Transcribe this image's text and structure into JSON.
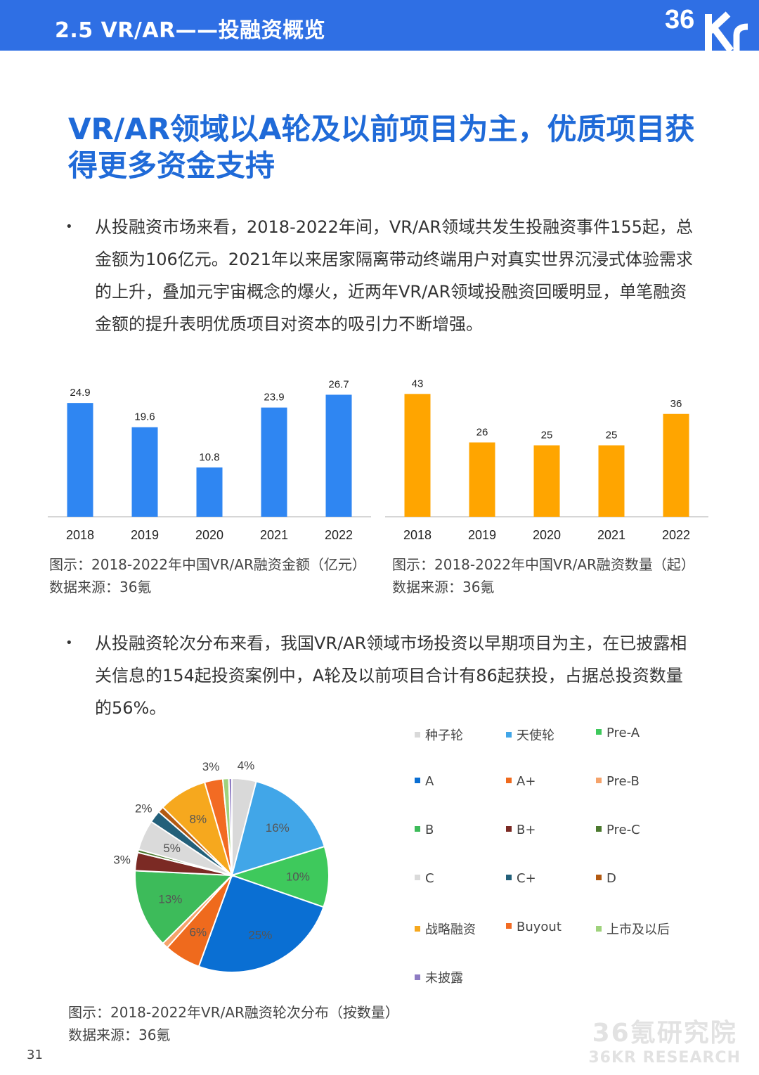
{
  "header": {
    "title": "2.5 VR/AR——投融资概览",
    "logo": "36Kr"
  },
  "headline": "VR/AR领域以A轮及以前项目为主，优质项目获得更多资金支持",
  "bullets": [
    "从投融资市场来看，2018-2022年间，VR/AR领域共发生投融资事件155起，总金额为106亿元。2021年以来居家隔离带动终端用户对真实世界沉浸式体验需求的上升，叠加元宇宙概念的爆火，近两年VR/AR领域投融资回暖明显，单笔融资金额的提升表明优质项目对资本的吸引力不断增强。",
    "从投融资轮次分布来看，我国VR/AR领域市场投资以早期项目为主，在已披露相关信息的154起投资案例中，A轮及以前项目合计有86起获投，占据总投资数量的56%。"
  ],
  "captions": {
    "amount": {
      "title": "图示：2018-2022年中国VR/AR融资金额（亿元）",
      "source": "数据来源：36氪"
    },
    "count": {
      "title": "图示：2018-2022年中国VR/AR融资数量（起）",
      "source": "数据来源：36氪"
    },
    "rounds": {
      "title": "图示：2018-2022年VR/AR融资轮次分布（按数量）",
      "source": "数据来源：36氪"
    }
  },
  "page_number": "31",
  "watermark": {
    "line1": "36氪研究院",
    "line2": "36KR RESEARCH"
  },
  "chart_data": [
    {
      "type": "bar",
      "categories": [
        "2018",
        "2019",
        "2020",
        "2021",
        "2022"
      ],
      "values": [
        24.9,
        19.6,
        10.8,
        23.9,
        26.7
      ],
      "labels": [
        "24.9",
        "19.6",
        "10.8",
        "23.9",
        "26.7"
      ],
      "color": "#2f86f2",
      "ylim": [
        0,
        30
      ]
    },
    {
      "type": "bar",
      "categories": [
        "2018",
        "2019",
        "2020",
        "2021",
        "2022"
      ],
      "values": [
        43,
        26,
        25,
        25,
        36
      ],
      "labels": [
        "43",
        "26",
        "25",
        "25",
        "36"
      ],
      "color": "#ffa500",
      "ylim": [
        0,
        48
      ]
    },
    {
      "type": "pie",
      "slices": [
        {
          "name": "种子轮",
          "value": 4,
          "label": "4%",
          "color": "#d9d9d9"
        },
        {
          "name": "天使轮",
          "value": 16,
          "label": "16%",
          "color": "#41a6e8"
        },
        {
          "name": "Pre-A",
          "value": 10,
          "label": "10%",
          "color": "#3ec95c"
        },
        {
          "name": "A",
          "value": 25,
          "label": "25%",
          "color": "#0a6fd3"
        },
        {
          "name": "A+",
          "value": 6,
          "label": "6%",
          "color": "#ef6a1d"
        },
        {
          "name": "Pre-B",
          "value": 1,
          "label": "",
          "color": "#f5a36b"
        },
        {
          "name": "B",
          "value": 13,
          "label": "13%",
          "color": "#3dbb5a"
        },
        {
          "name": "B+",
          "value": 3,
          "label": "3%",
          "color": "#7b2a24"
        },
        {
          "name": "Pre-C",
          "value": 0.5,
          "label": "",
          "color": "#4c7a2f"
        },
        {
          "name": "C",
          "value": 5,
          "label": "5%",
          "color": "#dadada"
        },
        {
          "name": "C+",
          "value": 2,
          "label": "2%",
          "color": "#23607a"
        },
        {
          "name": "D",
          "value": 1,
          "label": "",
          "color": "#b35a12"
        },
        {
          "name": "战略融资",
          "value": 8,
          "label": "8%",
          "color": "#f6a81e"
        },
        {
          "name": "Buyout",
          "value": 3,
          "label": "3%",
          "color": "#f26b23"
        },
        {
          "name": "上市及以后",
          "value": 1,
          "label": "",
          "color": "#9fd27c"
        },
        {
          "name": "未披露",
          "value": 0.5,
          "label": "",
          "color": "#8e7cc3"
        }
      ]
    }
  ]
}
